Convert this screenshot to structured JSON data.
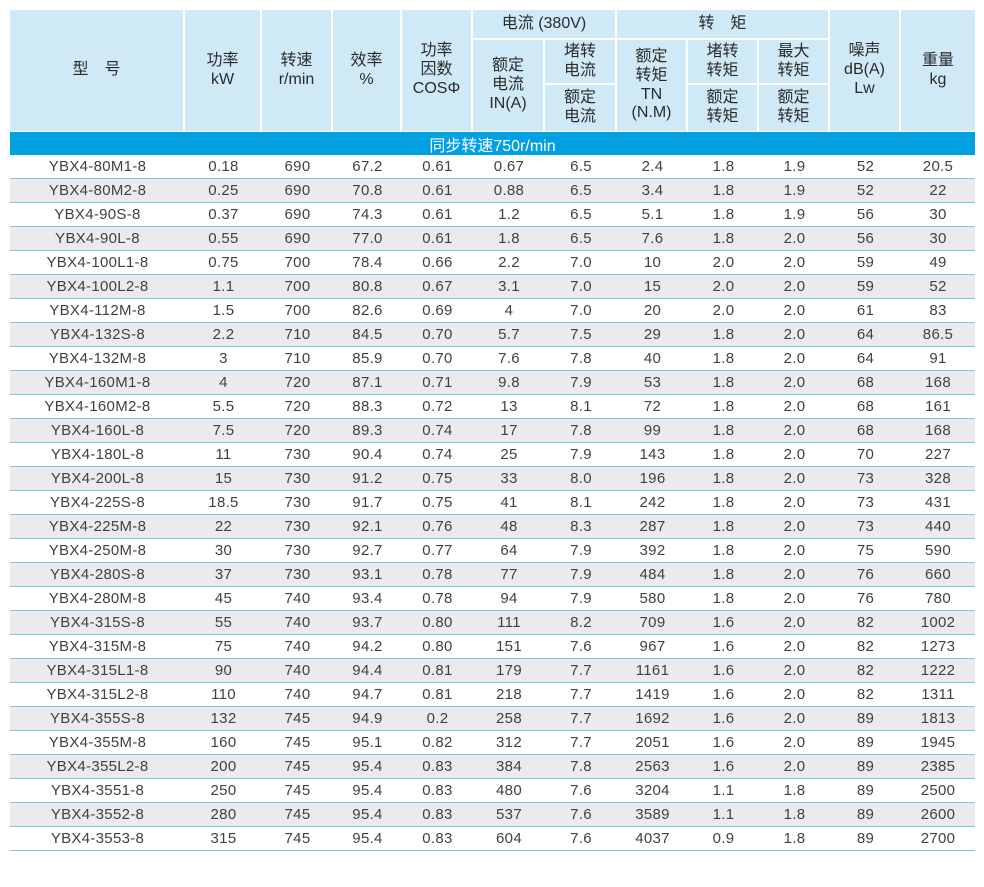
{
  "colors": {
    "header_bg": "#cfe9f7",
    "banner_bg": "#00a0e1",
    "row_alt": "#ebebed",
    "row_divider": "#74c9ec"
  },
  "table": {
    "header": {
      "model": "型　号",
      "power": "功率\nkW",
      "speed": "转速\nr/min",
      "efficiency": "效率\n%",
      "power_factor": "功率\n因数\nCOSΦ",
      "current_group": "电流 (380V)",
      "rated_current": "额定\n电流\nIN(A)",
      "locked_current_num": "堵转\n电流",
      "locked_current_den": "额定\n电流",
      "torque_group": "转　矩",
      "rated_torque": "额定\n转矩\nTN\n(N.M)",
      "locked_torque_num": "堵转\n转矩",
      "locked_torque_den": "额定\n转矩",
      "max_torque_num": "最大\n转矩",
      "max_torque_den": "额定\n转矩",
      "noise": "噪声\ndB(A)\nLw",
      "weight": "重量\nkg"
    },
    "banner": "同步转速750r/min",
    "column_keys": [
      "model",
      "power-kw",
      "speed-rpm",
      "efficiency-pct",
      "cos-phi",
      "rated-current",
      "locked-to-rated-current",
      "rated-torque",
      "locked-to-rated-torque",
      "max-to-rated-torque",
      "noise-db",
      "weight-kg"
    ],
    "rows": [
      [
        "YBX4-80M1-8",
        "0.18",
        "690",
        "67.2",
        "0.61",
        "0.67",
        "6.5",
        "2.4",
        "1.8",
        "1.9",
        "52",
        "20.5"
      ],
      [
        "YBX4-80M2-8",
        "0.25",
        "690",
        "70.8",
        "0.61",
        "0.88",
        "6.5",
        "3.4",
        "1.8",
        "1.9",
        "52",
        "22"
      ],
      [
        "YBX4-90S-8",
        "0.37",
        "690",
        "74.3",
        "0.61",
        "1.2",
        "6.5",
        "5.1",
        "1.8",
        "1.9",
        "56",
        "30"
      ],
      [
        "YBX4-90L-8",
        "0.55",
        "690",
        "77.0",
        "0.61",
        "1.8",
        "6.5",
        "7.6",
        "1.8",
        "2.0",
        "56",
        "30"
      ],
      [
        "YBX4-100L1-8",
        "0.75",
        "700",
        "78.4",
        "0.66",
        "2.2",
        "7.0",
        "10",
        "2.0",
        "2.0",
        "59",
        "49"
      ],
      [
        "YBX4-100L2-8",
        "1.1",
        "700",
        "80.8",
        "0.67",
        "3.1",
        "7.0",
        "15",
        "2.0",
        "2.0",
        "59",
        "52"
      ],
      [
        "YBX4-112M-8",
        "1.5",
        "700",
        "82.6",
        "0.69",
        "4",
        "7.0",
        "20",
        "2.0",
        "2.0",
        "61",
        "83"
      ],
      [
        "YBX4-132S-8",
        "2.2",
        "710",
        "84.5",
        "0.70",
        "5.7",
        "7.5",
        "29",
        "1.8",
        "2.0",
        "64",
        "86.5"
      ],
      [
        "YBX4-132M-8",
        "3",
        "710",
        "85.9",
        "0.70",
        "7.6",
        "7.8",
        "40",
        "1.8",
        "2.0",
        "64",
        "91"
      ],
      [
        "YBX4-160M1-8",
        "4",
        "720",
        "87.1",
        "0.71",
        "9.8",
        "7.9",
        "53",
        "1.8",
        "2.0",
        "68",
        "168"
      ],
      [
        "YBX4-160M2-8",
        "5.5",
        "720",
        "88.3",
        "0.72",
        "13",
        "8.1",
        "72",
        "1.8",
        "2.0",
        "68",
        "161"
      ],
      [
        "YBX4-160L-8",
        "7.5",
        "720",
        "89.3",
        "0.74",
        "17",
        "7.8",
        "99",
        "1.8",
        "2.0",
        "68",
        "168"
      ],
      [
        "YBX4-180L-8",
        "11",
        "730",
        "90.4",
        "0.74",
        "25",
        "7.9",
        "143",
        "1.8",
        "2.0",
        "70",
        "227"
      ],
      [
        "YBX4-200L-8",
        "15",
        "730",
        "91.2",
        "0.75",
        "33",
        "8.0",
        "196",
        "1.8",
        "2.0",
        "73",
        "328"
      ],
      [
        "YBX4-225S-8",
        "18.5",
        "730",
        "91.7",
        "0.75",
        "41",
        "8.1",
        "242",
        "1.8",
        "2.0",
        "73",
        "431"
      ],
      [
        "YBX4-225M-8",
        "22",
        "730",
        "92.1",
        "0.76",
        "48",
        "8.3",
        "287",
        "1.8",
        "2.0",
        "73",
        "440"
      ],
      [
        "YBX4-250M-8",
        "30",
        "730",
        "92.7",
        "0.77",
        "64",
        "7.9",
        "392",
        "1.8",
        "2.0",
        "75",
        "590"
      ],
      [
        "YBX4-280S-8",
        "37",
        "730",
        "93.1",
        "0.78",
        "77",
        "7.9",
        "484",
        "1.8",
        "2.0",
        "76",
        "660"
      ],
      [
        "YBX4-280M-8",
        "45",
        "740",
        "93.4",
        "0.78",
        "94",
        "7.9",
        "580",
        "1.8",
        "2.0",
        "76",
        "780"
      ],
      [
        "YBX4-315S-8",
        "55",
        "740",
        "93.7",
        "0.80",
        "111",
        "8.2",
        "709",
        "1.6",
        "2.0",
        "82",
        "1002"
      ],
      [
        "YBX4-315M-8",
        "75",
        "740",
        "94.2",
        "0.80",
        "151",
        "7.6",
        "967",
        "1.6",
        "2.0",
        "82",
        "1273"
      ],
      [
        "YBX4-315L1-8",
        "90",
        "740",
        "94.4",
        "0.81",
        "179",
        "7.7",
        "1161",
        "1.6",
        "2.0",
        "82",
        "1222"
      ],
      [
        "YBX4-315L2-8",
        "110",
        "740",
        "94.7",
        "0.81",
        "218",
        "7.7",
        "1419",
        "1.6",
        "2.0",
        "82",
        "1311"
      ],
      [
        "YBX4-355S-8",
        "132",
        "745",
        "94.9",
        "0.2",
        "258",
        "7.7",
        "1692",
        "1.6",
        "2.0",
        "89",
        "1813"
      ],
      [
        "YBX4-355M-8",
        "160",
        "745",
        "95.1",
        "0.82",
        "312",
        "7.7",
        "2051",
        "1.6",
        "2.0",
        "89",
        "1945"
      ],
      [
        "YBX4-355L2-8",
        "200",
        "745",
        "95.4",
        "0.83",
        "384",
        "7.8",
        "2563",
        "1.6",
        "2.0",
        "89",
        "2385"
      ],
      [
        "YBX4-3551-8",
        "250",
        "745",
        "95.4",
        "0.83",
        "480",
        "7.6",
        "3204",
        "1.1",
        "1.8",
        "89",
        "2500"
      ],
      [
        "YBX4-3552-8",
        "280",
        "745",
        "95.4",
        "0.83",
        "537",
        "7.6",
        "3589",
        "1.1",
        "1.8",
        "89",
        "2600"
      ],
      [
        "YBX4-3553-8",
        "315",
        "745",
        "95.4",
        "0.83",
        "604",
        "7.6",
        "4037",
        "0.9",
        "1.8",
        "89",
        "2700"
      ]
    ]
  }
}
